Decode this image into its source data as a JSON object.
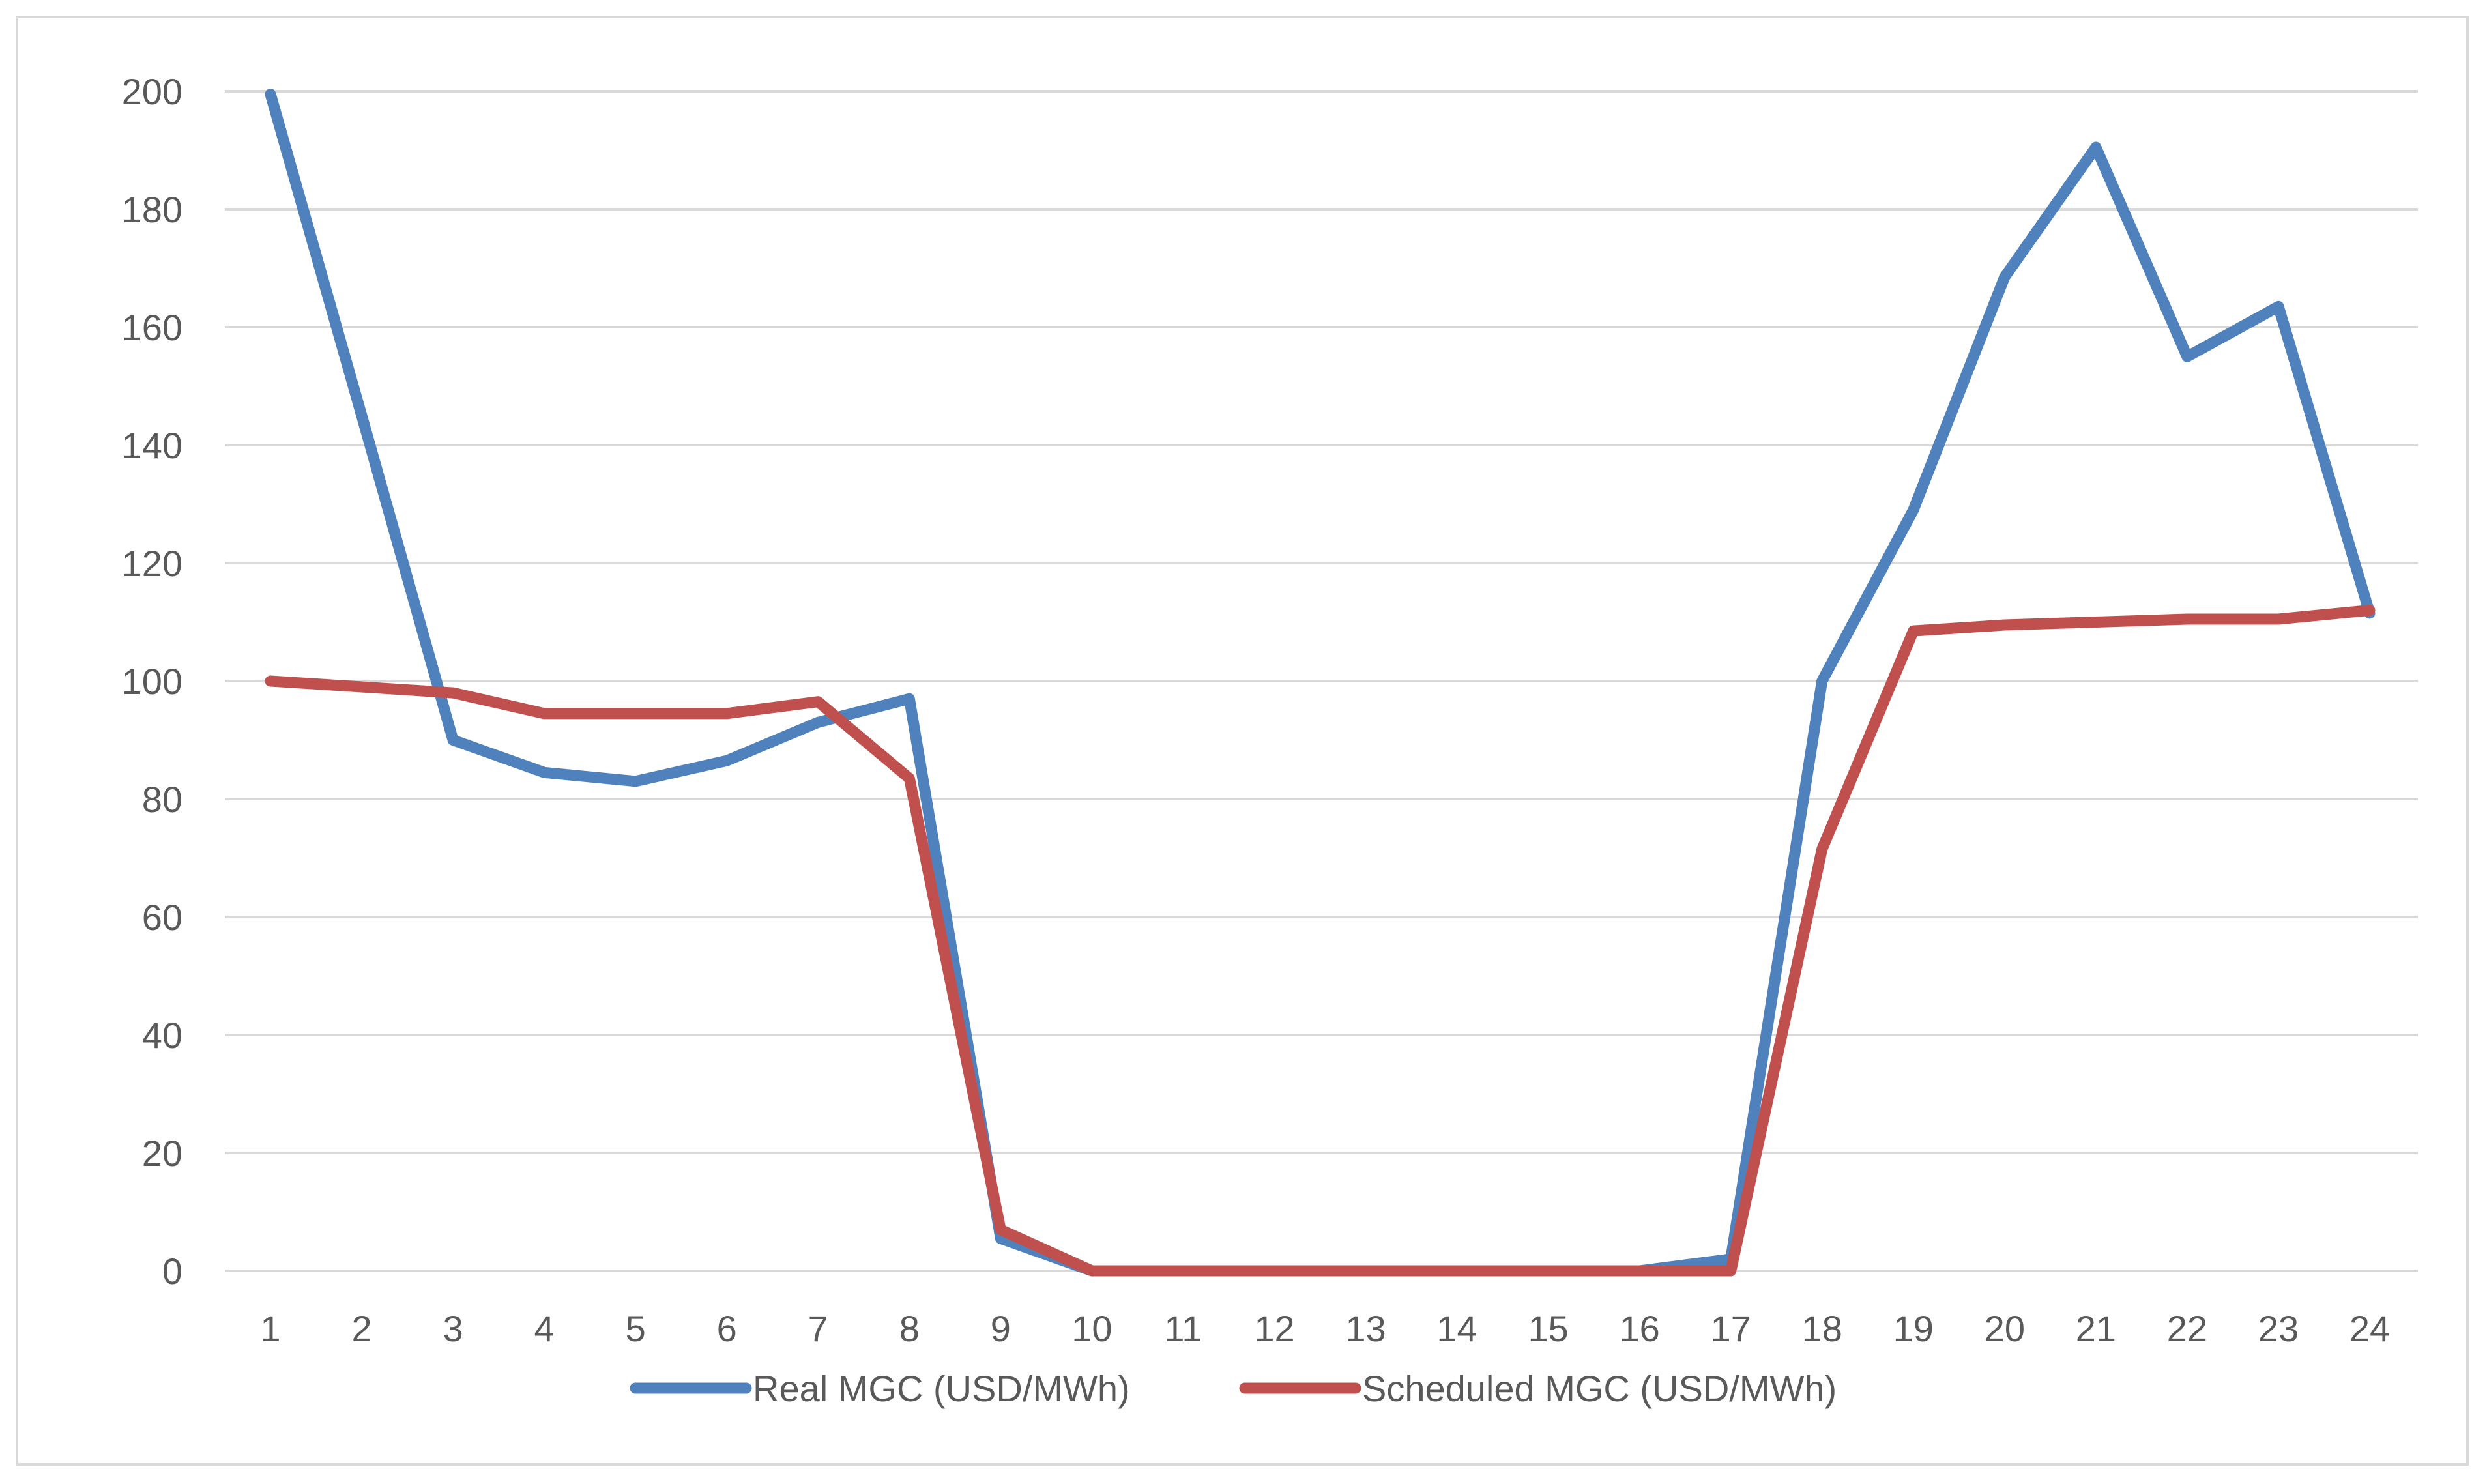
{
  "chart_data": {
    "type": "line",
    "title": "",
    "xlabel": "",
    "ylabel": "",
    "categories": [
      "1",
      "2",
      "3",
      "4",
      "5",
      "6",
      "7",
      "8",
      "9",
      "10",
      "11",
      "12",
      "13",
      "14",
      "15",
      "16",
      "17",
      "18",
      "19",
      "20",
      "21",
      "22",
      "23",
      "24"
    ],
    "ylim": [
      0,
      200
    ],
    "yticks": [
      0,
      20,
      40,
      60,
      80,
      100,
      120,
      140,
      160,
      180,
      200
    ],
    "grid": true,
    "legend_position": "bottom",
    "series": [
      {
        "name": "Real MGC (USD/MWh)",
        "color": "#4f81bd",
        "values": [
          199.5,
          145,
          90,
          84.5,
          83,
          86.5,
          93,
          97,
          5.5,
          0,
          0,
          0,
          0,
          0,
          0,
          0,
          2,
          100,
          129,
          168.5,
          190.5,
          155,
          163.5,
          111.5
        ]
      },
      {
        "name": "Scheduled MGC (USD/MWh)",
        "color": "#c0504d",
        "values": [
          100,
          99,
          98,
          94.5,
          94.5,
          94.5,
          96.5,
          83.5,
          7,
          0,
          0,
          0,
          0,
          0,
          0,
          0,
          0,
          71.5,
          108.5,
          109.5,
          110,
          110.5,
          110.5,
          112
        ]
      }
    ]
  }
}
